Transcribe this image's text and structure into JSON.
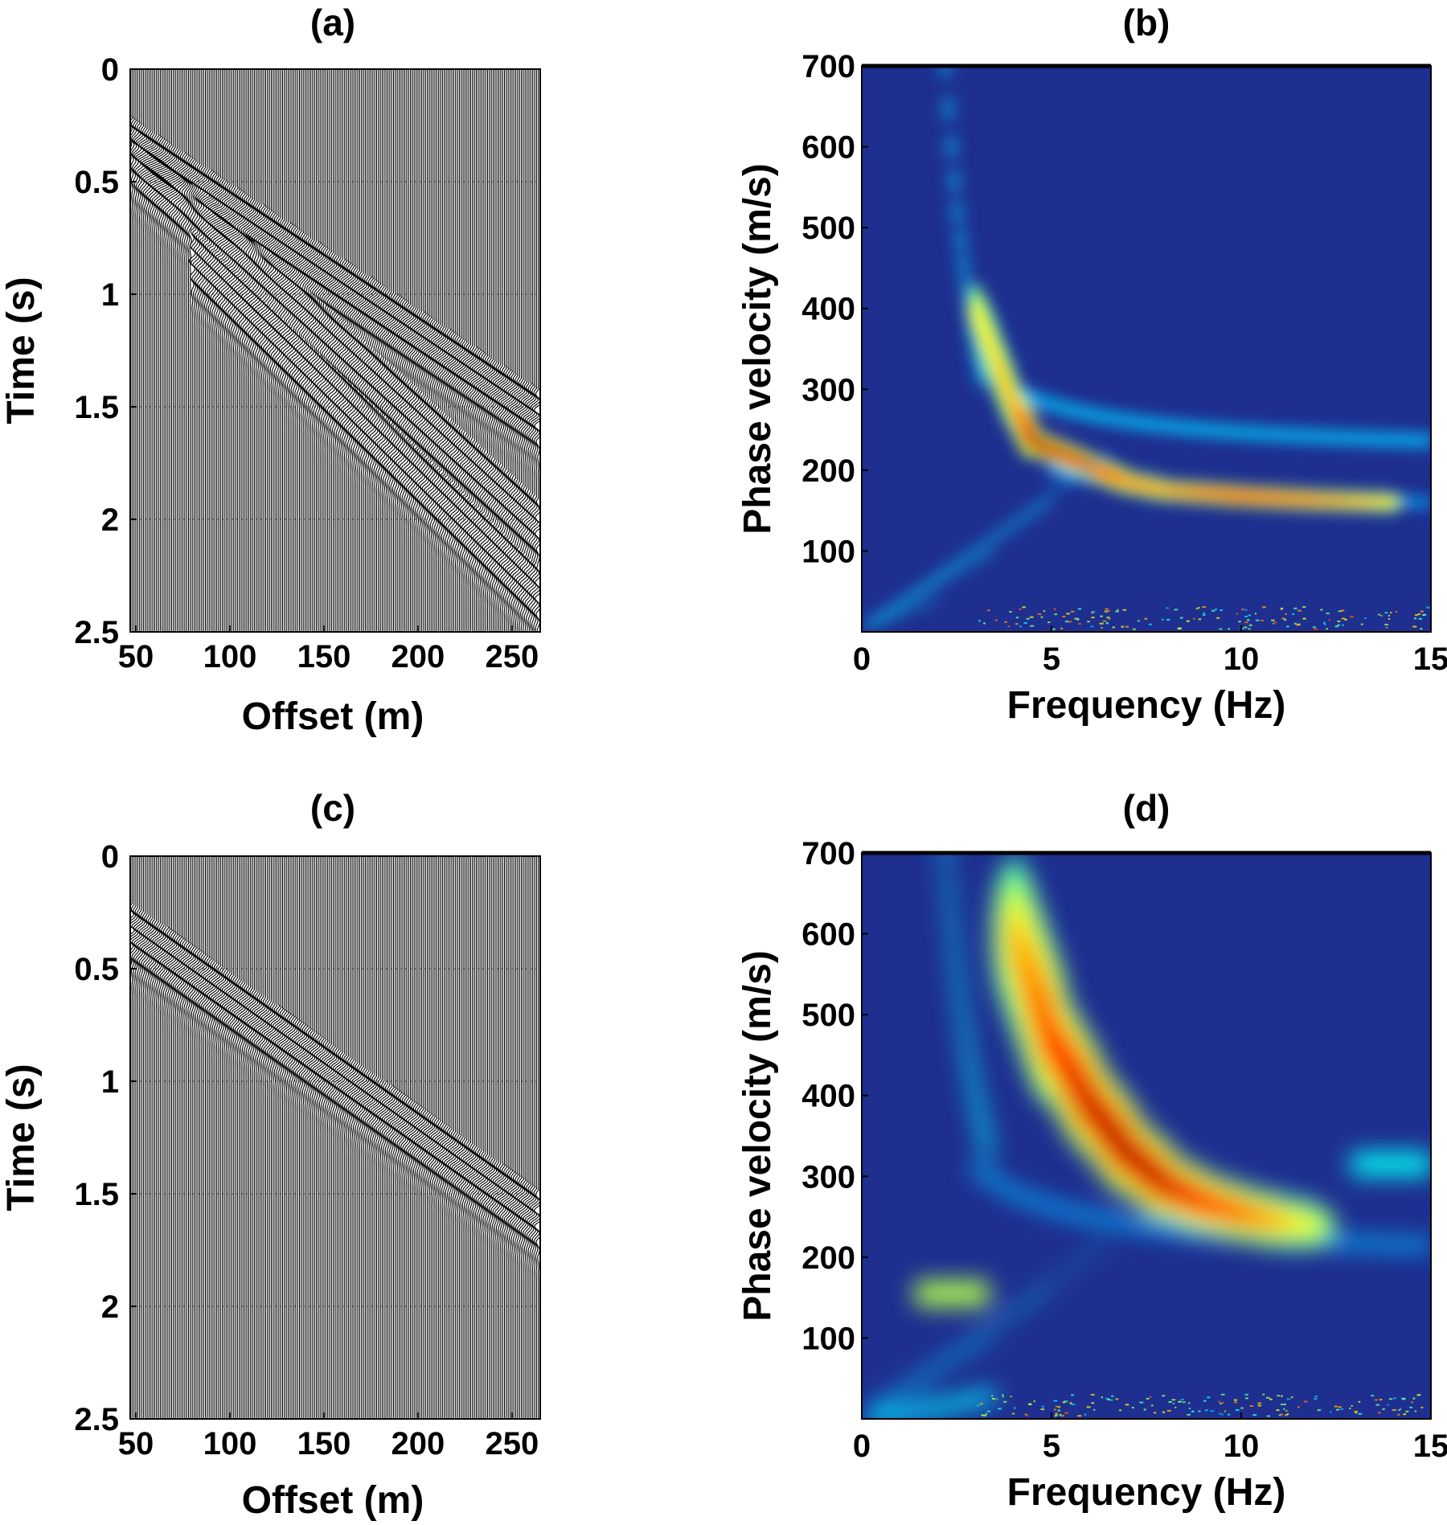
{
  "chart_data": [
    {
      "panel": "(a)",
      "type": "seismic-gather",
      "xlabel": "Offset (m)",
      "ylabel": "Time (s)",
      "xlim": [
        47,
        265
      ],
      "ylim": [
        2.5,
        0
      ],
      "xticks": [
        50,
        100,
        150,
        200,
        250
      ],
      "yticks": [
        0,
        0.5,
        1,
        1.5,
        2,
        2.5
      ],
      "trace_offset_start": 47,
      "trace_offset_end": 264,
      "trace_spacing": 1,
      "events": [
        {
          "offset": [
            47,
            264
          ],
          "time": [
            0.25,
            1.46
          ]
        },
        {
          "offset": [
            47,
            264
          ],
          "time": [
            0.3,
            1.95
          ]
        },
        {
          "offset": [
            80,
            264
          ],
          "time": [
            0.75,
            2.25
          ]
        }
      ]
    },
    {
      "panel": "(b)",
      "type": "heatmap",
      "xlabel": "Frequency (Hz)",
      "ylabel": "Phase velocity (m/s)",
      "xlim": [
        0,
        15
      ],
      "ylim": [
        0,
        700
      ],
      "xticks": [
        0,
        5,
        10,
        15
      ],
      "yticks": [
        100,
        200,
        300,
        400,
        500,
        600,
        700
      ],
      "colormap": "jet",
      "ridge_fundamental": {
        "frequency": [
          3,
          4,
          4.5,
          5,
          6,
          7,
          8,
          10,
          12,
          14
        ],
        "velocity": [
          400,
          280,
          235,
          225,
          205,
          185,
          175,
          168,
          163,
          160
        ],
        "peak_amplitude": [
          0.45,
          0.6,
          1.0,
          0.95,
          0.9,
          0.7,
          0.65,
          0.85,
          0.7,
          0.5
        ]
      }
    },
    {
      "panel": "(c)",
      "type": "seismic-gather",
      "xlabel": "Offset (m)",
      "ylabel": "Time (s)",
      "xlim": [
        47,
        265
      ],
      "ylim": [
        2.5,
        0
      ],
      "xticks": [
        50,
        100,
        150,
        200,
        250
      ],
      "yticks": [
        0,
        0.5,
        1,
        1.5,
        2,
        2.5
      ],
      "trace_offset_start": 47,
      "trace_offset_end": 264,
      "trace_spacing": 1,
      "events": [
        {
          "offset": [
            47,
            264
          ],
          "time": [
            0.24,
            1.52
          ]
        }
      ]
    },
    {
      "panel": "(d)",
      "type": "heatmap",
      "xlabel": "Frequency (Hz)",
      "ylabel": "Phase velocity (m/s)",
      "xlim": [
        0,
        15
      ],
      "ylim": [
        0,
        700
      ],
      "xticks": [
        0,
        5,
        10,
        15
      ],
      "yticks": [
        100,
        200,
        300,
        400,
        500,
        600,
        700
      ],
      "colormap": "jet",
      "ridge_fundamental": {
        "frequency": [
          4,
          5,
          6,
          7,
          8,
          9,
          10,
          11,
          12
        ],
        "velocity": [
          600,
          470,
          390,
          330,
          290,
          268,
          254,
          244,
          238
        ],
        "peak_amplitude": [
          0.55,
          0.8,
          0.95,
          1.0,
          0.95,
          0.85,
          0.75,
          0.6,
          0.4
        ]
      }
    }
  ]
}
